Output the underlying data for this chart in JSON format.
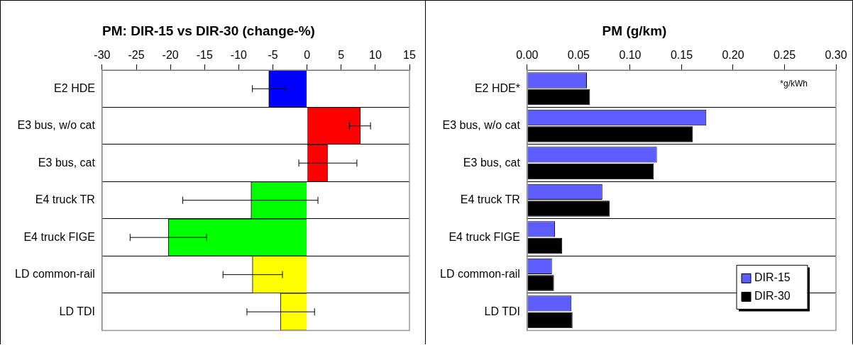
{
  "chart_data": [
    {
      "type": "bar",
      "orientation": "horizontal",
      "title": "PM: DIR-15 vs DIR-30 (change-%)",
      "categories": [
        "E2 HDE",
        "E3 bus, w/o cat",
        "E3 bus, cat",
        "E4 truck TR",
        "E4 truck FIGE",
        "LD common-rail",
        "LD TDI"
      ],
      "values": [
        -5.6,
        7.8,
        3.0,
        -8.2,
        -20.3,
        -8.0,
        -3.9
      ],
      "colors": [
        "#0000ff",
        "#ff0000",
        "#ff0000",
        "#00ff00",
        "#00ff00",
        "#ffff00",
        "#ffff00"
      ],
      "errors": [
        [
          -8.0,
          -3.2
        ],
        [
          6.2,
          9.3
        ],
        [
          -1.2,
          7.3
        ],
        [
          -18.2,
          1.6
        ],
        [
          -25.9,
          -14.7
        ],
        [
          -12.3,
          -3.6
        ],
        [
          -8.8,
          1.1
        ]
      ],
      "xlim": [
        -30,
        15
      ],
      "xticks": [
        -30,
        -25,
        -20,
        -15,
        -10,
        -5,
        0,
        5,
        10,
        15
      ],
      "grid": "y",
      "legend": false
    },
    {
      "type": "bar",
      "orientation": "horizontal",
      "title": "PM (g/km)",
      "categories": [
        "E2 HDE*",
        "E3 bus, w/o cat",
        "E3 bus, cat",
        "E4 truck TR",
        "E4 truck FIGE",
        "LD common-rail",
        "LD TDI"
      ],
      "series": [
        {
          "name": "DIR-15",
          "color": "#5c5cff",
          "values": [
            0.058,
            0.174,
            0.126,
            0.073,
            0.027,
            0.024,
            0.043
          ]
        },
        {
          "name": "DIR-30",
          "color": "#000000",
          "values": [
            0.061,
            0.161,
            0.123,
            0.08,
            0.034,
            0.026,
            0.044
          ]
        }
      ],
      "xlim": [
        0,
        0.3
      ],
      "xticks": [
        {
          "value": 0,
          "label": "0.00"
        },
        {
          "value": 0.05,
          "label": "0.05"
        },
        {
          "value": 0.1,
          "label": "0.10"
        },
        {
          "value": 0.15,
          "label": "0.15"
        },
        {
          "value": 0.2,
          "label": "0.20"
        },
        {
          "value": 0.25,
          "label": "0.25"
        },
        {
          "value": 0.3,
          "label": "0.30"
        }
      ],
      "grid": "y",
      "legend": "bottom right",
      "annotations": [
        "*g/kWh"
      ]
    }
  ]
}
